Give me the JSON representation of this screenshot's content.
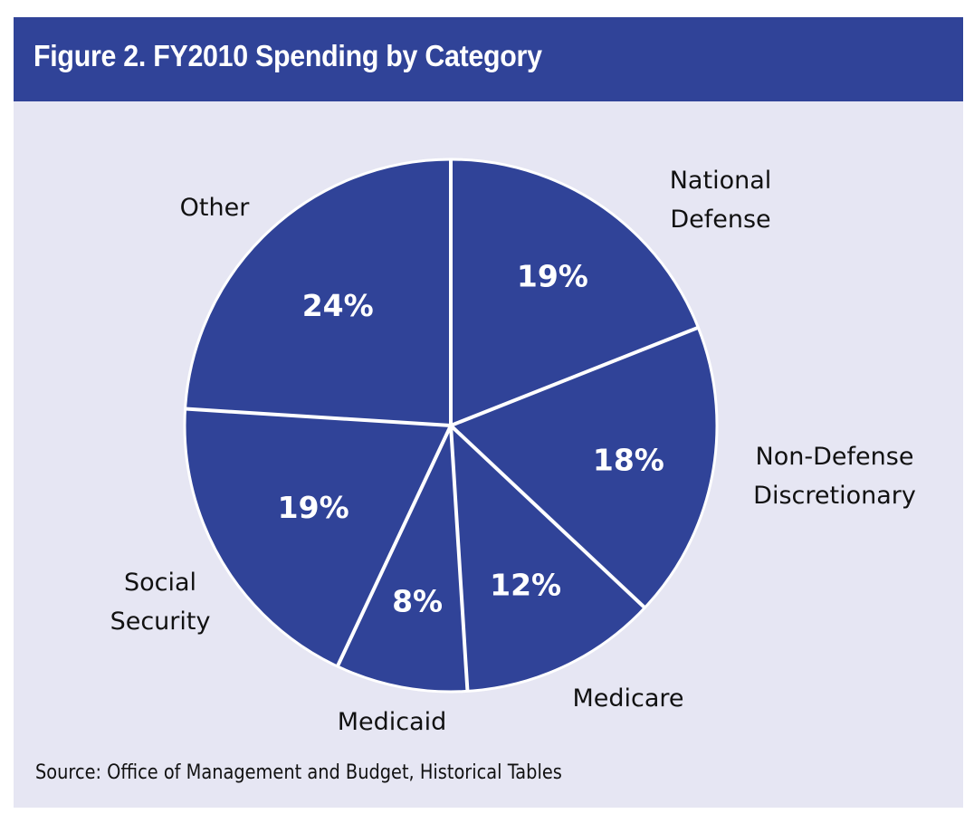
{
  "title": "Figure 2. FY2010 Spending by Category",
  "source": "Source: Office of Management and Budget, Historical Tables",
  "colors": {
    "header": "#304398",
    "background": "#e6e6f3",
    "slice": "#304398",
    "divider": "#ffffff",
    "label_text": "#111111",
    "value_text": "#ffffff"
  },
  "chart_data": {
    "type": "pie",
    "title": "Figure 2. FY2010 Spending by Category",
    "start": "top",
    "direction": "clockwise",
    "legend": "none (labels placed outside slices)",
    "unit": "%",
    "slices": [
      {
        "label": "National Defense",
        "label_lines": [
          "National",
          "Defense"
        ],
        "value": 19,
        "value_label": "19%"
      },
      {
        "label": "Non-Defense Discretionary",
        "label_lines": [
          "Non-Defense",
          "Discretionary"
        ],
        "value": 18,
        "value_label": "18%"
      },
      {
        "label": "Medicare",
        "label_lines": [
          "Medicare"
        ],
        "value": 12,
        "value_label": "12%"
      },
      {
        "label": "Medicaid",
        "label_lines": [
          "Medicaid"
        ],
        "value": 8,
        "value_label": "8%"
      },
      {
        "label": "Social Security",
        "label_lines": [
          "Social",
          "Security"
        ],
        "value": 19,
        "value_label": "19%"
      },
      {
        "label": "Other",
        "label_lines": [
          "Other"
        ],
        "value": 24,
        "value_label": "24%"
      }
    ],
    "source": "Office of Management and Budget, Historical Tables"
  }
}
